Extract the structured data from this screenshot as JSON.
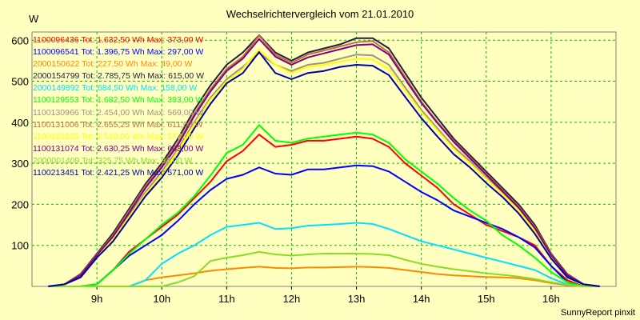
{
  "chart_data": {
    "type": "line",
    "title": "Wechselrichtervergleich vom 21.01.2010",
    "ylabel": "W",
    "footer": "SunnyReport pinxit",
    "ylim": [
      0,
      620
    ],
    "xlim": [
      8.0,
      17.0
    ],
    "yticks": [
      100,
      200,
      300,
      400,
      500,
      600
    ],
    "xticks": [
      9,
      10,
      11,
      12,
      13,
      14,
      15,
      16
    ],
    "xtick_labels": [
      "9h",
      "10h",
      "11h",
      "12h",
      "13h",
      "14h",
      "15h",
      "16h"
    ],
    "grid": true,
    "legend_position": "top-left",
    "x": [
      8.25,
      8.5,
      8.75,
      9.0,
      9.25,
      9.5,
      9.75,
      10.0,
      10.25,
      10.5,
      10.75,
      11.0,
      11.25,
      11.5,
      11.75,
      12.0,
      12.25,
      12.5,
      12.75,
      13.0,
      13.25,
      13.5,
      13.75,
      14.0,
      14.25,
      14.5,
      14.75,
      15.0,
      15.25,
      15.5,
      15.75,
      16.0,
      16.25,
      16.5,
      16.75
    ],
    "series": [
      {
        "name": "1100096436",
        "legend": "1100096436 Tot: 1.632,50 Wh Max: 373,00 W",
        "color": "#ff0000",
        "values": [
          0,
          0,
          0,
          5,
          40,
          85,
          115,
          145,
          175,
          215,
          255,
          305,
          330,
          370,
          340,
          345,
          355,
          355,
          360,
          365,
          360,
          340,
          300,
          270,
          240,
          200,
          175,
          150,
          135,
          120,
          100,
          50,
          15,
          0,
          0
        ]
      },
      {
        "name": "1100096541",
        "legend": "1100096541 Tot: 1.396,75 Wh Max: 297,00 W",
        "color": "#0000ff",
        "values": [
          0,
          0,
          0,
          5,
          40,
          75,
          100,
          125,
          160,
          200,
          235,
          262,
          272,
          290,
          275,
          272,
          285,
          285,
          290,
          295,
          293,
          280,
          255,
          230,
          210,
          185,
          170,
          155,
          140,
          120,
          95,
          50,
          10,
          0,
          0
        ]
      },
      {
        "name": "2000150622",
        "legend": "2000150622 Tot: 227,50 Wh Max: 49,00 W",
        "color": "#ff8800",
        "values": [
          0,
          0,
          0,
          0,
          0,
          0,
          15,
          22,
          27,
          32,
          38,
          42,
          45,
          48,
          45,
          44,
          46,
          46,
          47,
          48,
          47,
          45,
          40,
          35,
          30,
          27,
          25,
          23,
          22,
          20,
          15,
          8,
          3,
          0,
          0
        ]
      },
      {
        "name": "2000154799",
        "legend": "2000154799 Tot: 2.785,75 Wh Max: 615,00 W",
        "color": "#202040",
        "values": [
          0,
          5,
          30,
          80,
          130,
          190,
          250,
          300,
          360,
          430,
          490,
          540,
          570,
          612,
          570,
          550,
          570,
          580,
          590,
          605,
          605,
          580,
          520,
          460,
          410,
          360,
          320,
          280,
          240,
          200,
          150,
          80,
          30,
          5,
          0
        ]
      },
      {
        "name": "2000149892",
        "legend": "2000149892 Tot: 684,50 Wh Max: 158,00 W",
        "color": "#00e0ff",
        "values": [
          0,
          0,
          0,
          0,
          0,
          0,
          15,
          55,
          80,
          100,
          125,
          145,
          150,
          155,
          140,
          142,
          148,
          150,
          152,
          155,
          152,
          140,
          125,
          110,
          100,
          90,
          80,
          70,
          60,
          50,
          40,
          20,
          5,
          0,
          0
        ]
      },
      {
        "name": "1100129553",
        "legend": "1100129553 Tot: 1.682,50 Wh Max: 393,00 W",
        "color": "#00ff00",
        "values": [
          0,
          0,
          0,
          5,
          40,
          80,
          115,
          150,
          180,
          220,
          270,
          325,
          345,
          393,
          355,
          350,
          360,
          365,
          370,
          375,
          370,
          350,
          310,
          280,
          250,
          215,
          185,
          160,
          125,
          100,
          70,
          35,
          10,
          0,
          0
        ]
      },
      {
        "name": "1100130966",
        "legend": "1100130966 Tot: 2.454,00 Wh Max: 569,00 W",
        "color": "#a09088",
        "values": [
          0,
          5,
          25,
          75,
          120,
          175,
          230,
          280,
          335,
          400,
          460,
          505,
          535,
          569,
          540,
          525,
          540,
          545,
          555,
          565,
          563,
          540,
          485,
          430,
          385,
          340,
          305,
          265,
          230,
          190,
          140,
          75,
          25,
          5,
          0
        ]
      },
      {
        "name": "1100131006",
        "legend": "1100131006 Tot: 2.655,25 Wh Max: 611,00 W",
        "color": "#c07040",
        "values": [
          0,
          5,
          28,
          78,
          125,
          185,
          245,
          295,
          350,
          420,
          480,
          530,
          560,
          611,
          565,
          545,
          565,
          575,
          585,
          595,
          598,
          570,
          510,
          450,
          400,
          355,
          315,
          275,
          235,
          195,
          145,
          78,
          28,
          5,
          0
        ]
      },
      {
        "name": "1100131025",
        "legend": "1100131025 Tot: 2.510,00 Wh Max: 577,00 W",
        "color": "#ffff00",
        "values": [
          0,
          5,
          25,
          72,
          115,
          170,
          225,
          272,
          330,
          395,
          455,
          500,
          530,
          577,
          540,
          520,
          535,
          540,
          548,
          555,
          553,
          530,
          478,
          425,
          380,
          335,
          300,
          262,
          225,
          185,
          135,
          72,
          25,
          5,
          0
        ]
      },
      {
        "name": "1100131074",
        "legend": "1100131074 Tot: 2.630,25 Wh Max: 603,00 W",
        "color": "#800080",
        "values": [
          0,
          5,
          27,
          76,
          122,
          180,
          240,
          290,
          345,
          415,
          475,
          525,
          555,
          603,
          560,
          540,
          558,
          568,
          578,
          588,
          590,
          565,
          505,
          447,
          398,
          352,
          312,
          272,
          232,
          192,
          142,
          76,
          27,
          5,
          0
        ]
      },
      {
        "name": "2000001409",
        "legend": "2000001409 Tot: 325,75 Wh Max: 84,00 W",
        "color": "#88dd22",
        "values": [
          0,
          0,
          0,
          0,
          0,
          0,
          0,
          0,
          10,
          25,
          62,
          70,
          76,
          84,
          78,
          75,
          78,
          80,
          80,
          80,
          79,
          76,
          65,
          55,
          48,
          42,
          37,
          32,
          28,
          24,
          18,
          10,
          4,
          0,
          0
        ]
      },
      {
        "name": "1100213451",
        "legend": "1100213451 Tot: 2.421,25 Wh Max: 571,00 W",
        "color": "#0000a0",
        "values": [
          0,
          5,
          22,
          70,
          110,
          165,
          220,
          265,
          320,
          385,
          445,
          495,
          520,
          571,
          520,
          505,
          520,
          525,
          535,
          540,
          538,
          515,
          462,
          410,
          365,
          322,
          290,
          252,
          218,
          178,
          128,
          68,
          22,
          5,
          0
        ]
      }
    ]
  }
}
